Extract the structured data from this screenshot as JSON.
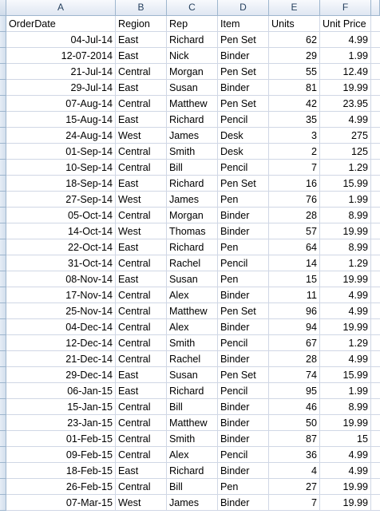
{
  "columns": [
    "A",
    "B",
    "C",
    "D",
    "E",
    "F"
  ],
  "headers": [
    "OrderDate",
    "Region",
    "Rep",
    "Item",
    "Units",
    "Unit Price"
  ],
  "rows": [
    [
      "04-Jul-14",
      "East",
      "Richard",
      "Pen Set",
      "62",
      "4.99"
    ],
    [
      "12-07-2014",
      "East",
      "Nick",
      "Binder",
      "29",
      "1.99"
    ],
    [
      "21-Jul-14",
      "Central",
      "Morgan",
      "Pen Set",
      "55",
      "12.49"
    ],
    [
      "29-Jul-14",
      "East",
      "Susan",
      "Binder",
      "81",
      "19.99"
    ],
    [
      "07-Aug-14",
      "Central",
      "Matthew",
      "Pen Set",
      "42",
      "23.95"
    ],
    [
      "15-Aug-14",
      "East",
      "Richard",
      "Pencil",
      "35",
      "4.99"
    ],
    [
      "24-Aug-14",
      "West",
      "James",
      "Desk",
      "3",
      "275"
    ],
    [
      "01-Sep-14",
      "Central",
      "Smith",
      "Desk",
      "2",
      "125"
    ],
    [
      "10-Sep-14",
      "Central",
      "Bill",
      "Pencil",
      "7",
      "1.29"
    ],
    [
      "18-Sep-14",
      "East",
      "Richard",
      "Pen Set",
      "16",
      "15.99"
    ],
    [
      "27-Sep-14",
      "West",
      "James",
      "Pen",
      "76",
      "1.99"
    ],
    [
      "05-Oct-14",
      "Central",
      "Morgan",
      "Binder",
      "28",
      "8.99"
    ],
    [
      "14-Oct-14",
      "West",
      "Thomas",
      "Binder",
      "57",
      "19.99"
    ],
    [
      "22-Oct-14",
      "East",
      "Richard",
      "Pen",
      "64",
      "8.99"
    ],
    [
      "31-Oct-14",
      "Central",
      "Rachel",
      "Pencil",
      "14",
      "1.29"
    ],
    [
      "08-Nov-14",
      "East",
      "Susan",
      "Pen",
      "15",
      "19.99"
    ],
    [
      "17-Nov-14",
      "Central",
      "Alex",
      "Binder",
      "11",
      "4.99"
    ],
    [
      "25-Nov-14",
      "Central",
      "Matthew",
      "Pen Set",
      "96",
      "4.99"
    ],
    [
      "04-Dec-14",
      "Central",
      "Alex",
      "Binder",
      "94",
      "19.99"
    ],
    [
      "12-Dec-14",
      "Central",
      "Smith",
      "Pencil",
      "67",
      "1.29"
    ],
    [
      "21-Dec-14",
      "Central",
      "Rachel",
      "Binder",
      "28",
      "4.99"
    ],
    [
      "29-Dec-14",
      "East",
      "Susan",
      "Pen Set",
      "74",
      "15.99"
    ],
    [
      "06-Jan-15",
      "East",
      "Richard",
      "Pencil",
      "95",
      "1.99"
    ],
    [
      "15-Jan-15",
      "Central",
      "Bill",
      "Binder",
      "46",
      "8.99"
    ],
    [
      "23-Jan-15",
      "Central",
      "Matthew",
      "Binder",
      "50",
      "19.99"
    ],
    [
      "01-Feb-15",
      "Central",
      "Smith",
      "Binder",
      "87",
      "15"
    ],
    [
      "09-Feb-15",
      "Central",
      "Alex",
      "Pencil",
      "36",
      "4.99"
    ],
    [
      "18-Feb-15",
      "East",
      "Richard",
      "Binder",
      "4",
      "4.99"
    ],
    [
      "26-Feb-15",
      "Central",
      "Bill",
      "Pen",
      "27",
      "19.99"
    ],
    [
      "07-Mar-15",
      "West",
      "James",
      "Binder",
      "7",
      "19.99"
    ]
  ]
}
